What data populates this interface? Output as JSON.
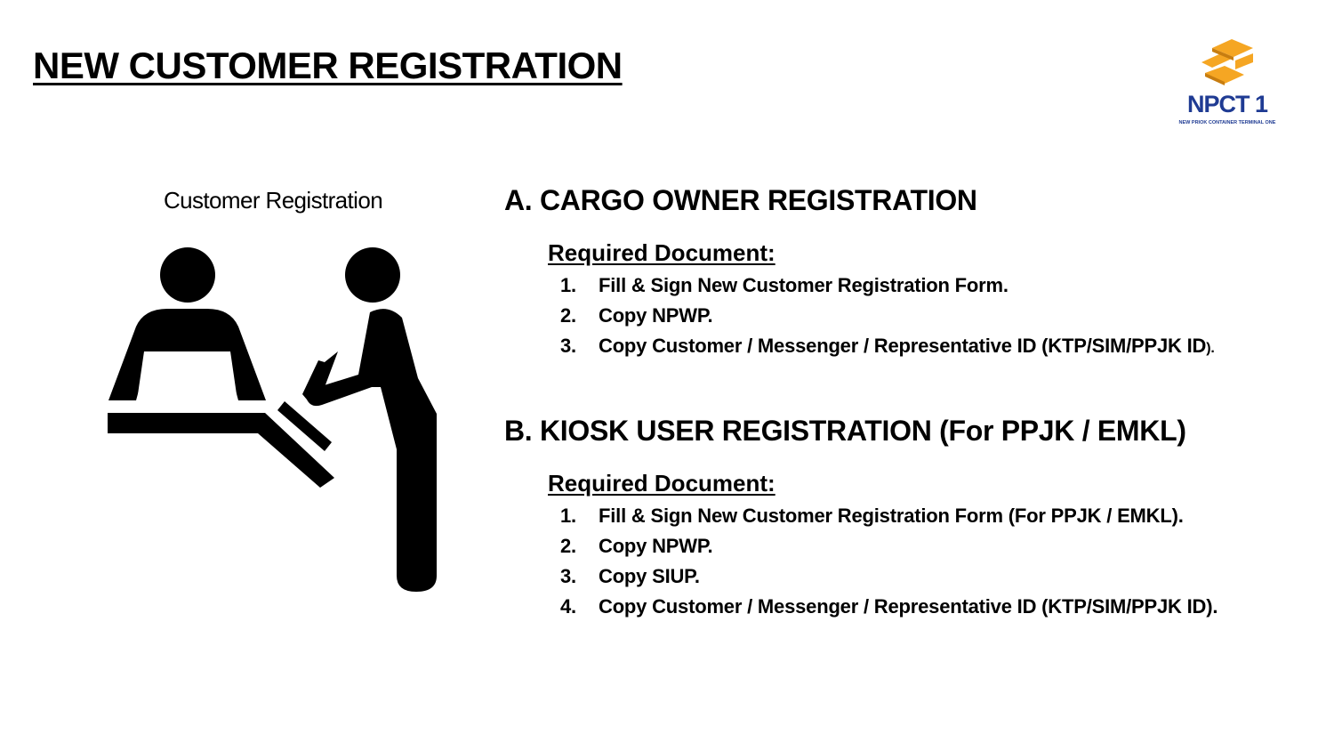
{
  "page_title": "NEW CUSTOMER REGISTRATION",
  "logo": {
    "name": "NPCT 1",
    "subtitle": "NEW PRIOK CONTAINER TERMINAL ONE"
  },
  "illustration": {
    "caption": "Customer Registration",
    "icon": "registration-desk-icon"
  },
  "colors": {
    "logo_blue": "#1f3b93",
    "logo_orange": "#f5a623"
  },
  "sections": [
    {
      "title": "A. CARGO OWNER REGISTRATION",
      "required_label": "Required Document:",
      "items": [
        {
          "num": "1.",
          "text": "Fill & Sign New Customer Registration Form."
        },
        {
          "num": "2.",
          "text": "Copy NPWP."
        },
        {
          "num": "3.",
          "text": "Copy Customer / Messenger / Representative ID (KTP/SIM/PPJK ID",
          "tail": ")."
        }
      ]
    },
    {
      "title": "B. KIOSK USER REGISTRATION (For PPJK / EMKL)",
      "required_label": "Required Document:",
      "items": [
        {
          "num": "1.",
          "text": "Fill & Sign New Customer Registration Form (For PPJK / EMKL)."
        },
        {
          "num": "2.",
          "text": "Copy NPWP."
        },
        {
          "num": "3.",
          "text": "Copy SIUP."
        },
        {
          "num": "4.",
          "text": "Copy Customer / Messenger / Representative ID (KTP/SIM/PPJK ID)."
        }
      ]
    }
  ]
}
